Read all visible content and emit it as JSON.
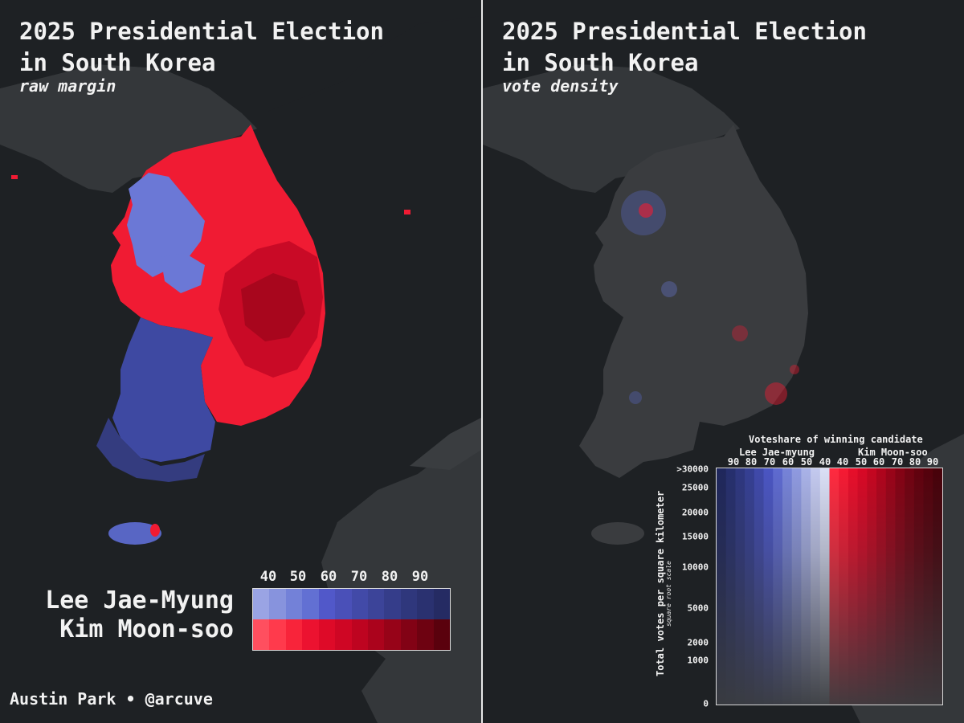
{
  "left_panel": {
    "title": "2025 Presidential Election\nin South Korea",
    "subtitle": "raw margin",
    "legend": {
      "ticks": [
        "40",
        "50",
        "60",
        "70",
        "80",
        "90"
      ],
      "candidates": [
        {
          "name": "Lee Jae-Myung",
          "colors": [
            "#9aa4e4",
            "#8793dd",
            "#7381d8",
            "#6270d3",
            "#5158c9",
            "#4a50b8",
            "#424aa8",
            "#3c4499",
            "#353d8a",
            "#2f377c",
            "#2a3170",
            "#252b63"
          ]
        },
        {
          "name": "Kim Moon-soo",
          "colors": [
            "#ff4f5f",
            "#ff3a4c",
            "#f8243a",
            "#ec1230",
            "#de0a28",
            "#cf0624",
            "#be0420",
            "#ab031c",
            "#970318",
            "#820215",
            "#6e0211",
            "#5a010d"
          ]
        }
      ]
    },
    "credit": "Austin Park • @arcuve",
    "colors": {
      "blue_region": "#3e49a2",
      "red_region": "#f01b33",
      "dark_red": "#c90a26",
      "light_blue": "#6b78d6"
    }
  },
  "right_panel": {
    "title": "2025 Presidential Election\nin South Korea",
    "subtitle": "vote density",
    "legend": {
      "title": "Voteshare of winning candidate",
      "candidate_left": "Lee Jae-myung",
      "candidate_right": "Kim Moon-soo",
      "x_ticks_left": [
        "90",
        "80",
        "70",
        "60",
        "50",
        "40"
      ],
      "x_ticks_right": [
        "40",
        "50",
        "60",
        "70",
        "80",
        "90"
      ],
      "y_label": "Total votes per square kilometer",
      "y_sublabel": "square root scale",
      "y_ticks": [
        ">30000",
        "25000",
        "20000",
        "15000",
        "10000",
        "5000",
        "2000",
        "1000",
        "0"
      ]
    }
  }
}
